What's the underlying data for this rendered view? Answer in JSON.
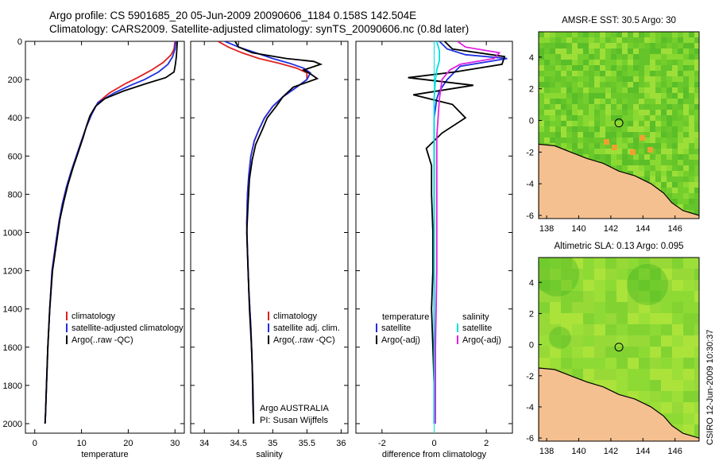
{
  "header": {
    "title_line1": "Argo profile: CS 5901685_20 05-Jun-2009 20090606_1184 0.158S 142.504E",
    "title_line2": "Climatology: CARS2009. Satellite-adjusted climatology: synTS_20090606.nc (0.8d later)"
  },
  "footer_note": "CSIRO 12-Jun-2009 10:30:37",
  "colors": {
    "climatology": "#e02020",
    "satellite": "#1f2fe0",
    "argo": "#000000",
    "satellite_diff_salinity": "#00e0e0",
    "argo_diff_salinity": "#e020e0",
    "land": "#f5c08f",
    "sst_base": "#7ccf2c",
    "sla_base": "#8ed936"
  },
  "chart_data": [
    {
      "type": "line",
      "xlabel": "temperature",
      "ylabel": "",
      "xlim": [
        -2,
        32
      ],
      "ylim": [
        0,
        2050
      ],
      "y_reversed": true,
      "xticks": [
        0,
        10,
        20,
        30
      ],
      "yticks": [
        0,
        200,
        400,
        600,
        800,
        1000,
        1200,
        1400,
        1600,
        1800,
        2000
      ],
      "legend": [
        "climatology",
        "satellite-adjusted climatology",
        "Argo(..raw -QC)"
      ],
      "series": [
        {
          "name": "climatology",
          "color": "#e02020",
          "x": [
            30,
            29.8,
            29.2,
            27.5,
            25,
            22,
            19.5,
            16,
            13.5,
            12.2,
            11,
            10,
            8.9,
            7.8,
            6.8,
            5.9,
            5.2,
            4.6,
            3.7,
            3.2,
            2.8,
            2.5,
            2.3,
            2.2
          ],
          "y": [
            0,
            40,
            70,
            110,
            150,
            190,
            220,
            270,
            320,
            380,
            450,
            520,
            600,
            680,
            760,
            850,
            940,
            1040,
            1200,
            1400,
            1600,
            1800,
            1950,
            2000
          ]
        },
        {
          "name": "satellite-adjusted climatology",
          "color": "#1f2fe0",
          "x": [
            30.2,
            30,
            29.5,
            28.5,
            26.5,
            23.5,
            20.5,
            17,
            13.5,
            12.2,
            11,
            10,
            8.9,
            7.8,
            6.8,
            5.9,
            5.2,
            4.6,
            3.7,
            3.2,
            2.8,
            2.5,
            2.3,
            2.2
          ],
          "y": [
            0,
            40,
            80,
            120,
            160,
            200,
            230,
            270,
            320,
            380,
            450,
            520,
            600,
            680,
            760,
            850,
            940,
            1040,
            1200,
            1400,
            1600,
            1800,
            1950,
            2000
          ]
        },
        {
          "name": "Argo(..raw -QC)",
          "color": "#000000",
          "x": [
            30.5,
            30.4,
            30.3,
            30.1,
            29.8,
            28,
            24,
            19,
            15,
            13,
            11.8,
            11.1,
            10.4,
            9.3,
            8.2,
            7.1,
            6.2,
            5.4,
            4.8,
            3.8,
            3.2,
            2.8,
            2.5,
            2.3,
            2.2
          ],
          "y": [
            0,
            40,
            80,
            120,
            160,
            190,
            220,
            260,
            300,
            340,
            390,
            440,
            500,
            580,
            660,
            750,
            840,
            930,
            1030,
            1200,
            1400,
            1600,
            1800,
            1950,
            2000
          ]
        }
      ]
    },
    {
      "type": "line",
      "xlabel": "salinity",
      "ylabel": "",
      "xlim": [
        33.8,
        36.1
      ],
      "ylim": [
        0,
        2050
      ],
      "y_reversed": true,
      "xticks": [
        34,
        34.5,
        35,
        35.5,
        36
      ],
      "annotation": [
        "Argo AUSTRALIA",
        "PI: Susan Wijffels"
      ],
      "legend": [
        "climatology",
        "satellite adj. clim.",
        "Argo(..raw -QC)"
      ],
      "series": [
        {
          "name": "climatology",
          "color": "#e02020",
          "x": [
            34.2,
            34.35,
            34.55,
            34.8,
            35.1,
            35.35,
            35.5,
            35.5,
            35.35,
            35.15,
            35.0,
            34.88,
            34.8,
            34.73,
            34.68,
            34.65,
            34.63,
            34.62,
            34.63,
            34.65,
            34.68,
            34.7,
            34.71,
            34.72
          ],
          "y": [
            0,
            30,
            60,
            90,
            115,
            140,
            165,
            200,
            240,
            290,
            340,
            400,
            460,
            520,
            600,
            700,
            800,
            950,
            1100,
            1300,
            1500,
            1700,
            1900,
            2000
          ]
        },
        {
          "name": "satellite adj. clim.",
          "color": "#1f2fe0",
          "x": [
            34.3,
            34.5,
            34.75,
            35.0,
            35.25,
            35.45,
            35.55,
            35.5,
            35.35,
            35.15,
            35.0,
            34.88,
            34.8,
            34.73,
            34.68,
            34.65,
            34.63,
            34.62,
            34.63,
            34.65,
            34.68,
            34.7,
            34.71,
            34.72
          ],
          "y": [
            0,
            30,
            60,
            90,
            115,
            140,
            165,
            200,
            240,
            290,
            340,
            400,
            460,
            520,
            600,
            700,
            800,
            950,
            1100,
            1300,
            1500,
            1700,
            1900,
            2000
          ]
        },
        {
          "name": "Argo(..raw -QC)",
          "color": "#000000",
          "x": [
            34.45,
            34.5,
            34.7,
            35.2,
            35.6,
            35.7,
            35.45,
            35.55,
            35.65,
            35.3,
            35.15,
            35.05,
            34.92,
            34.85,
            34.75,
            34.7,
            34.66,
            34.64,
            34.62,
            34.64,
            34.66,
            34.69,
            34.71,
            34.72
          ],
          "y": [
            0,
            30,
            60,
            90,
            105,
            120,
            150,
            170,
            195,
            240,
            290,
            340,
            400,
            460,
            540,
            620,
            720,
            850,
            1000,
            1200,
            1400,
            1600,
            1800,
            2000
          ]
        }
      ]
    },
    {
      "type": "line",
      "xlabel": "difference from climatology",
      "ylabel": "",
      "xlim": [
        -3,
        3
      ],
      "ylim": [
        0,
        2050
      ],
      "y_reversed": true,
      "xticks": [
        -2,
        0,
        2
      ],
      "legend_left": {
        "title": "temperature",
        "items": [
          "satellite",
          "Argo(-adj)"
        ]
      },
      "legend_right": {
        "title": "salinity",
        "items": [
          "satellite",
          "Argo(-adj)"
        ]
      },
      "series": [
        {
          "name": "temperature satellite",
          "color": "#1f2fe0",
          "x": [
            0.2,
            0.5,
            1.2,
            2.8,
            1.0,
            0.5,
            0.2,
            0.1,
            0.0,
            0.0,
            0.0,
            0.0,
            0.0
          ],
          "y": [
            0,
            40,
            70,
            90,
            130,
            200,
            260,
            300,
            400,
            600,
            1000,
            1500,
            2000
          ]
        },
        {
          "name": "temperature Argo(-adj)",
          "color": "#000000",
          "x": [
            0.4,
            0.7,
            2.7,
            2.6,
            0.8,
            -1.0,
            1.5,
            -0.8,
            0.7,
            1.2,
            0.3,
            -0.3,
            -0.1,
            -0.1,
            -0.05,
            -0.05,
            -0.1,
            -0.05,
            0.0,
            0.0
          ],
          "y": [
            0,
            40,
            80,
            120,
            160,
            190,
            230,
            280,
            330,
            400,
            480,
            560,
            650,
            800,
            1000,
            1200,
            1400,
            1600,
            1800,
            2000
          ]
        },
        {
          "name": "salinity satellite",
          "color": "#00e0e0",
          "x": [
            0.1,
            0.2,
            0.2,
            0.1,
            0.05,
            0.0,
            0.0,
            0.0,
            0.0,
            0.0,
            0.0
          ],
          "y": [
            0,
            50,
            100,
            150,
            200,
            300,
            500,
            800,
            1200,
            1600,
            2000
          ]
        },
        {
          "name": "salinity Argo(-adj)",
          "color": "#e020e0",
          "x": [
            0.9,
            1.2,
            2.5,
            2.3,
            1.0,
            0.6,
            0.3,
            0.2,
            0.1,
            0.1,
            0.1,
            0.05,
            0.05
          ],
          "y": [
            0,
            30,
            60,
            90,
            120,
            150,
            200,
            300,
            500,
            800,
            1200,
            1600,
            2000
          ]
        }
      ]
    },
    {
      "type": "heatmap",
      "title": "AMSR-E SST: 30.5 Argo: 30",
      "xlim": [
        137.5,
        147.5
      ],
      "ylim": [
        -6.2,
        5.6
      ],
      "xticks": [
        138,
        140,
        142,
        144,
        146
      ],
      "yticks": [
        -6,
        -4,
        -2,
        0,
        2,
        4
      ],
      "marker": {
        "lon": 142.504,
        "lat": -0.158
      }
    },
    {
      "type": "heatmap",
      "title": "Altimetric SLA: 0.13 Argo: 0.095",
      "xlim": [
        137.5,
        147.5
      ],
      "ylim": [
        -6.2,
        5.6
      ],
      "xticks": [
        138,
        140,
        142,
        144,
        146
      ],
      "yticks": [
        -6,
        -4,
        -2,
        0,
        2,
        4
      ],
      "marker": {
        "lon": 142.504,
        "lat": -0.158
      }
    }
  ]
}
